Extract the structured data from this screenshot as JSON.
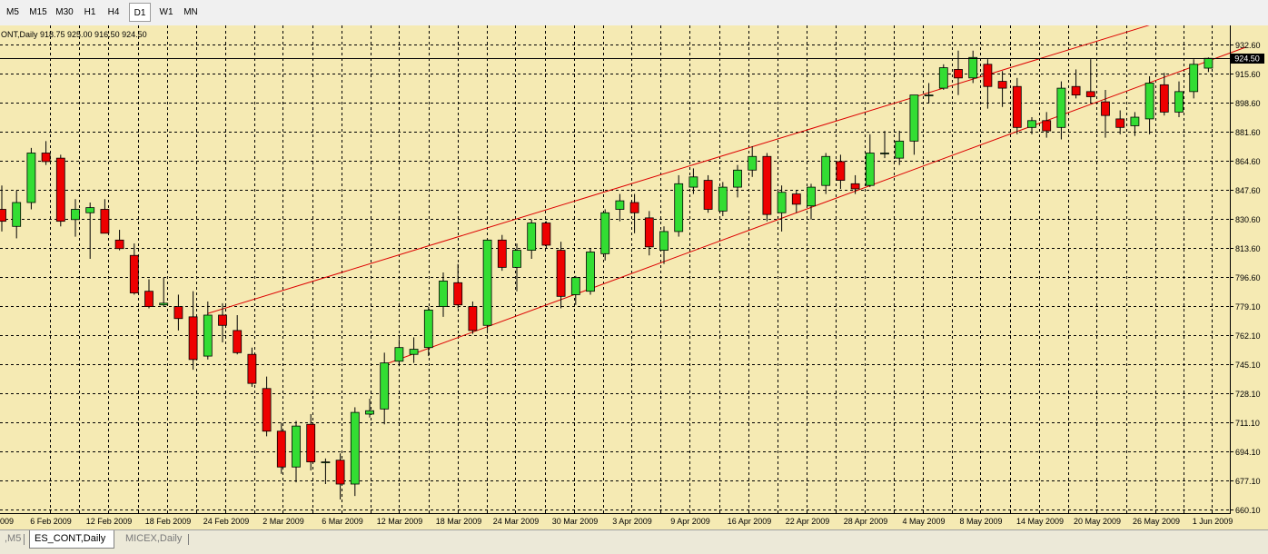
{
  "toolbar": {
    "timeframes": [
      "M5",
      "M15",
      "M30",
      "H1",
      "H4",
      "D1",
      "W1",
      "MN"
    ],
    "active": "D1"
  },
  "chart_info": {
    "text": "ONT,Daily  918.75 925.00 916.50 924.50"
  },
  "price_labels": [
    "932.60",
    "915.60",
    "898.60",
    "881.60",
    "864.60",
    "847.60",
    "830.60",
    "813.60",
    "796.60",
    "779.10",
    "762.10",
    "745.10",
    "728.10",
    "711.10",
    "694.10",
    "677.10",
    "660.10"
  ],
  "current_price": "924.50",
  "date_labels": [
    "009",
    "6 Feb 2009",
    "12 Feb 2009",
    "18 Feb 2009",
    "24 Feb 2009",
    "2 Mar 2009",
    "6 Mar 2009",
    "12 Mar 2009",
    "18 Mar 2009",
    "24 Mar 2009",
    "30 Mar 2009",
    "3 Apr 2009",
    "9 Apr 2009",
    "16 Apr 2009",
    "22 Apr 2009",
    "28 Apr 2009",
    "4 May 2009",
    "8 May 2009",
    "14 May 2009",
    "20 May 2009",
    "26 May 2009",
    "1 Jun 2009"
  ],
  "tabs": [
    {
      "label": ",M5",
      "active": false
    },
    {
      "label": "ES_CONT,Daily",
      "active": true
    },
    {
      "label": "MICEX,Daily",
      "active": false
    }
  ],
  "colors": {
    "background": "#f5eab3",
    "grid": "#000000",
    "bull": "#33dd33",
    "bear": "#ee0000",
    "wick": "#000000",
    "channel": "#dd0000"
  },
  "chart_data": {
    "type": "candlestick",
    "y_range": [
      660.1,
      932.6
    ],
    "series": [
      {
        "date": "2 Feb 2009",
        "open": 836,
        "high": 850,
        "low": 823,
        "close": 829
      },
      {
        "date": "3 Feb 2009",
        "open": 826,
        "high": 847,
        "low": 819,
        "close": 840
      },
      {
        "date": "4 Feb 2009",
        "open": 840,
        "high": 872,
        "low": 836,
        "close": 869
      },
      {
        "date": "5 Feb 2009",
        "open": 869,
        "high": 876,
        "low": 862,
        "close": 864
      },
      {
        "date": "6 Feb 2009",
        "open": 866,
        "high": 868,
        "low": 826,
        "close": 829
      },
      {
        "date": "9 Feb 2009",
        "open": 830,
        "high": 842,
        "low": 820,
        "close": 836
      },
      {
        "date": "10 Feb 2009",
        "open": 834,
        "high": 840,
        "low": 807,
        "close": 837
      },
      {
        "date": "11 Feb 2009",
        "open": 836,
        "high": 842,
        "low": 823,
        "close": 822
      },
      {
        "date": "12 Feb 2009",
        "open": 818,
        "high": 824,
        "low": 812,
        "close": 813
      },
      {
        "date": "13 Feb 2009",
        "open": 809,
        "high": 816,
        "low": 786,
        "close": 787
      },
      {
        "date": "17 Feb 2009",
        "open": 788,
        "high": 795,
        "low": 778,
        "close": 779
      },
      {
        "date": "18 Feb 2009",
        "open": 780,
        "high": 796,
        "low": 779,
        "close": 781
      },
      {
        "date": "19 Feb 2009",
        "open": 779,
        "high": 786,
        "low": 765,
        "close": 772
      },
      {
        "date": "20 Feb 2009",
        "open": 773,
        "high": 788,
        "low": 742,
        "close": 748
      },
      {
        "date": "23 Feb 2009",
        "open": 750,
        "high": 782,
        "low": 748,
        "close": 774
      },
      {
        "date": "24 Feb 2009",
        "open": 774,
        "high": 781,
        "low": 758,
        "close": 768
      },
      {
        "date": "25 Feb 2009",
        "open": 765,
        "high": 774,
        "low": 751,
        "close": 752
      },
      {
        "date": "26 Feb 2009",
        "open": 751,
        "high": 755,
        "low": 732,
        "close": 734
      },
      {
        "date": "27 Feb 2009",
        "open": 731,
        "high": 738,
        "low": 703,
        "close": 706
      },
      {
        "date": "2 Mar 2009",
        "open": 706,
        "high": 711,
        "low": 681,
        "close": 685
      },
      {
        "date": "3 Mar 2009",
        "open": 685,
        "high": 712,
        "low": 676,
        "close": 709
      },
      {
        "date": "4 Mar 2009",
        "open": 710,
        "high": 716,
        "low": 683,
        "close": 688
      },
      {
        "date": "5 Mar 2009",
        "open": 688,
        "high": 690,
        "low": 675,
        "close": 688
      },
      {
        "date": "6 Mar 2009",
        "open": 689,
        "high": 693,
        "low": 666,
        "close": 675
      },
      {
        "date": "9 Mar 2009",
        "open": 675,
        "high": 720,
        "low": 668,
        "close": 717
      },
      {
        "date": "10 Mar 2009",
        "open": 716,
        "high": 725,
        "low": 714,
        "close": 718
      },
      {
        "date": "11 Mar 2009",
        "open": 719,
        "high": 752,
        "low": 710,
        "close": 746
      },
      {
        "date": "12 Mar 2009",
        "open": 747,
        "high": 760,
        "low": 744,
        "close": 755
      },
      {
        "date": "13 Mar 2009",
        "open": 751,
        "high": 761,
        "low": 746,
        "close": 754
      },
      {
        "date": "16 Mar 2009",
        "open": 755,
        "high": 779,
        "low": 750,
        "close": 777
      },
      {
        "date": "17 Mar 2009",
        "open": 779,
        "high": 799,
        "low": 773,
        "close": 794
      },
      {
        "date": "18 Mar 2009",
        "open": 793,
        "high": 804,
        "low": 778,
        "close": 780
      },
      {
        "date": "19 Mar 2009",
        "open": 779,
        "high": 782,
        "low": 763,
        "close": 765
      },
      {
        "date": "20 Mar 2009",
        "open": 768,
        "high": 819,
        "low": 765,
        "close": 818
      },
      {
        "date": "23 Mar 2009",
        "open": 818,
        "high": 821,
        "low": 800,
        "close": 802
      },
      {
        "date": "24 Mar 2009",
        "open": 802,
        "high": 816,
        "low": 788,
        "close": 812
      },
      {
        "date": "25 Mar 2009",
        "open": 812,
        "high": 830,
        "low": 807,
        "close": 828
      },
      {
        "date": "26 Mar 2009",
        "open": 828,
        "high": 829,
        "low": 813,
        "close": 815
      },
      {
        "date": "27 Mar 2009",
        "open": 812,
        "high": 817,
        "low": 778,
        "close": 785
      },
      {
        "date": "30 Mar 2009",
        "open": 786,
        "high": 797,
        "low": 780,
        "close": 796
      },
      {
        "date": "31 Mar 2009",
        "open": 788,
        "high": 813,
        "low": 786,
        "close": 811
      },
      {
        "date": "1 Apr 2009",
        "open": 810,
        "high": 836,
        "low": 806,
        "close": 834
      },
      {
        "date": "2 Apr 2009",
        "open": 836,
        "high": 845,
        "low": 829,
        "close": 841
      },
      {
        "date": "3 Apr 2009",
        "open": 840,
        "high": 845,
        "low": 822,
        "close": 834
      },
      {
        "date": "6 Apr 2009",
        "open": 831,
        "high": 835,
        "low": 809,
        "close": 814
      },
      {
        "date": "7 Apr 2009",
        "open": 812,
        "high": 826,
        "low": 804,
        "close": 823
      },
      {
        "date": "8 Apr 2009",
        "open": 823,
        "high": 856,
        "low": 820,
        "close": 851
      },
      {
        "date": "9 Apr 2009",
        "open": 849,
        "high": 860,
        "low": 845,
        "close": 855
      },
      {
        "date": "13 Apr 2009",
        "open": 853,
        "high": 856,
        "low": 834,
        "close": 836
      },
      {
        "date": "14 Apr 2009",
        "open": 835,
        "high": 852,
        "low": 832,
        "close": 849
      },
      {
        "date": "15 Apr 2009",
        "open": 849,
        "high": 862,
        "low": 843,
        "close": 859
      },
      {
        "date": "16 Apr 2009",
        "open": 859,
        "high": 873,
        "low": 855,
        "close": 867
      },
      {
        "date": "17 Apr 2009",
        "open": 867,
        "high": 869,
        "low": 829,
        "close": 833
      },
      {
        "date": "20 Apr 2009",
        "open": 834,
        "high": 850,
        "low": 823,
        "close": 846
      },
      {
        "date": "21 Apr 2009",
        "open": 845,
        "high": 847,
        "low": 834,
        "close": 839
      },
      {
        "date": "22 Apr 2009",
        "open": 838,
        "high": 851,
        "low": 830,
        "close": 849
      },
      {
        "date": "23 Apr 2009",
        "open": 850,
        "high": 869,
        "low": 845,
        "close": 867
      },
      {
        "date": "24 Apr 2009",
        "open": 864,
        "high": 868,
        "low": 848,
        "close": 853
      },
      {
        "date": "27 Apr 2009",
        "open": 851,
        "high": 856,
        "low": 845,
        "close": 848
      },
      {
        "date": "28 Apr 2009",
        "open": 850,
        "high": 880,
        "low": 849,
        "close": 869
      },
      {
        "date": "29 Apr 2009",
        "open": 869,
        "high": 882,
        "low": 866,
        "close": 869
      },
      {
        "date": "30 Apr 2009",
        "open": 866,
        "high": 882,
        "low": 862,
        "close": 876
      },
      {
        "date": "1 May 2009",
        "open": 876,
        "high": 903,
        "low": 868,
        "close": 903
      },
      {
        "date": "4 May 2009",
        "open": 903,
        "high": 910,
        "low": 898,
        "close": 903
      },
      {
        "date": "5 May 2009",
        "open": 907,
        "high": 921,
        "low": 906,
        "close": 919
      },
      {
        "date": "6 May 2009",
        "open": 918,
        "high": 929,
        "low": 903,
        "close": 913
      },
      {
        "date": "7 May 2009",
        "open": 913,
        "high": 929,
        "low": 910,
        "close": 925
      },
      {
        "date": "8 May 2009",
        "open": 921,
        "high": 924,
        "low": 895,
        "close": 908
      },
      {
        "date": "11 May 2009",
        "open": 911,
        "high": 917,
        "low": 896,
        "close": 907
      },
      {
        "date": "12 May 2009",
        "open": 908,
        "high": 913,
        "low": 880,
        "close": 884
      },
      {
        "date": "13 May 2009",
        "open": 884,
        "high": 890,
        "low": 880,
        "close": 888
      },
      {
        "date": "14 May 2009",
        "open": 888,
        "high": 893,
        "low": 878,
        "close": 882
      },
      {
        "date": "15 May 2009",
        "open": 884,
        "high": 911,
        "low": 877,
        "close": 907
      },
      {
        "date": "18 May 2009",
        "open": 908,
        "high": 918,
        "low": 901,
        "close": 903
      },
      {
        "date": "19 May 2009",
        "open": 905,
        "high": 924,
        "low": 898,
        "close": 902
      },
      {
        "date": "20 May 2009",
        "open": 899,
        "high": 906,
        "low": 878,
        "close": 891
      },
      {
        "date": "21 May 2009",
        "open": 889,
        "high": 894,
        "low": 880,
        "close": 884
      },
      {
        "date": "22 May 2009",
        "open": 885,
        "high": 893,
        "low": 879,
        "close": 890
      },
      {
        "date": "26 May 2009",
        "open": 889,
        "high": 914,
        "low": 880,
        "close": 910
      },
      {
        "date": "27 May 2009",
        "open": 909,
        "high": 916,
        "low": 891,
        "close": 893
      },
      {
        "date": "28 May 2009",
        "open": 893,
        "high": 911,
        "low": 890,
        "close": 905
      },
      {
        "date": "29 May 2009",
        "open": 905,
        "high": 924,
        "low": 901,
        "close": 921
      },
      {
        "date": "1 Jun 2009",
        "open": 918.75,
        "high": 925.0,
        "low": 916.5,
        "close": 924.5
      }
    ],
    "channel": {
      "upper": {
        "from": {
          "date": "23 Feb 2009",
          "price": 775
        },
        "to": {
          "date": "26 May 2009",
          "price": 944
        }
      },
      "lower": {
        "from": {
          "date": "11 Mar 2009",
          "price": 745
        },
        "to": {
          "date": "1 Jun 2009",
          "price": 931
        }
      }
    }
  }
}
